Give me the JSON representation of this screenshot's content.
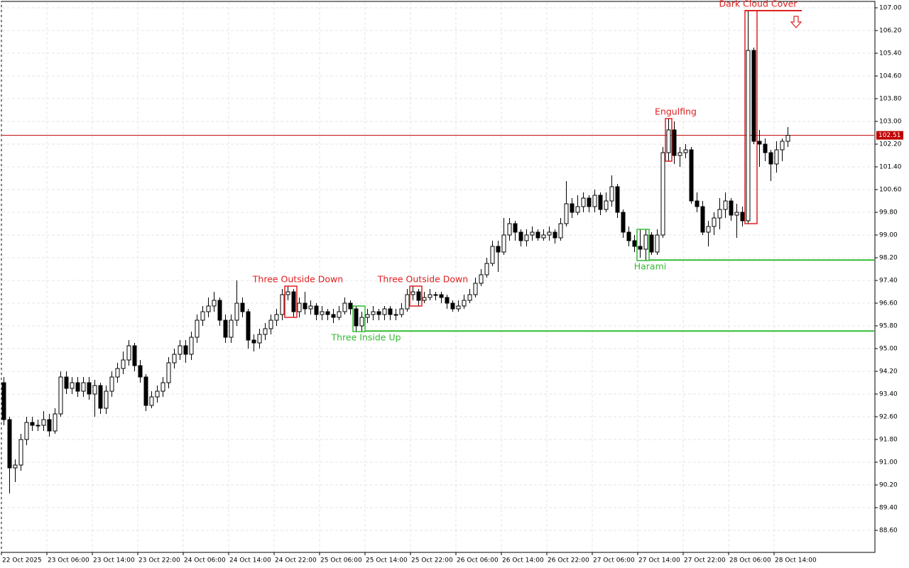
{
  "chart_data": {
    "type": "candlestick",
    "candles": [
      [
        93.8,
        94.0,
        92.3,
        92.5
      ],
      [
        92.5,
        92.6,
        89.9,
        90.8
      ],
      [
        90.8,
        91.1,
        90.3,
        90.9
      ],
      [
        90.9,
        92.0,
        90.7,
        91.8
      ],
      [
        91.8,
        92.6,
        91.6,
        92.4
      ],
      [
        92.4,
        92.6,
        92.1,
        92.3
      ],
      [
        92.3,
        92.5,
        92.1,
        92.3
      ],
      [
        92.3,
        92.8,
        92.1,
        92.5
      ],
      [
        92.5,
        92.7,
        91.9,
        92.1
      ],
      [
        92.1,
        92.9,
        92.0,
        92.7
      ],
      [
        92.7,
        94.2,
        92.6,
        94.0
      ],
      [
        94.0,
        94.2,
        93.4,
        93.6
      ],
      [
        93.6,
        94.0,
        93.4,
        93.8
      ],
      [
        93.8,
        94.0,
        93.3,
        93.5
      ],
      [
        93.5,
        94.0,
        93.3,
        93.8
      ],
      [
        93.8,
        94.0,
        93.2,
        93.4
      ],
      [
        93.4,
        93.9,
        92.6,
        93.7
      ],
      [
        93.7,
        93.8,
        92.7,
        92.9
      ],
      [
        92.9,
        93.7,
        92.7,
        93.5
      ],
      [
        93.5,
        94.2,
        93.3,
        94.0
      ],
      [
        94.0,
        94.5,
        93.8,
        94.3
      ],
      [
        94.3,
        94.9,
        94.1,
        94.6
      ],
      [
        94.6,
        95.3,
        94.4,
        95.1
      ],
      [
        95.1,
        95.2,
        94.2,
        94.4
      ],
      [
        94.4,
        94.6,
        93.8,
        94.0
      ],
      [
        94.0,
        94.1,
        92.8,
        93.0
      ],
      [
        93.0,
        93.5,
        92.9,
        93.3
      ],
      [
        93.3,
        93.7,
        93.1,
        93.5
      ],
      [
        93.5,
        94.0,
        93.3,
        93.8
      ],
      [
        93.8,
        94.7,
        93.6,
        94.5
      ],
      [
        94.5,
        95.0,
        94.3,
        94.8
      ],
      [
        94.8,
        95.3,
        94.6,
        95.1
      ],
      [
        95.1,
        95.3,
        94.5,
        94.8
      ],
      [
        94.8,
        95.6,
        94.6,
        95.4
      ],
      [
        95.4,
        96.2,
        95.2,
        96.0
      ],
      [
        96.0,
        96.5,
        95.8,
        96.3
      ],
      [
        96.3,
        96.8,
        96.1,
        96.5
      ],
      [
        96.5,
        97.0,
        96.3,
        96.7
      ],
      [
        96.7,
        96.8,
        95.8,
        96.0
      ],
      [
        96.0,
        96.2,
        95.2,
        95.4
      ],
      [
        95.4,
        96.2,
        95.2,
        96.0
      ],
      [
        96.0,
        97.4,
        95.8,
        96.6
      ],
      [
        96.6,
        96.8,
        96.1,
        96.3
      ],
      [
        96.3,
        96.4,
        95.0,
        95.3
      ],
      [
        95.3,
        95.5,
        94.9,
        95.2
      ],
      [
        95.2,
        95.7,
        95.0,
        95.5
      ],
      [
        95.5,
        95.9,
        95.3,
        95.7
      ],
      [
        95.7,
        96.2,
        95.5,
        96.0
      ],
      [
        96.0,
        96.4,
        95.8,
        96.2
      ],
      [
        96.2,
        97.1,
        96.0,
        96.9
      ],
      [
        96.9,
        97.2,
        96.7,
        97.0
      ],
      [
        97.0,
        97.1,
        96.1,
        96.3
      ],
      [
        96.3,
        96.8,
        96.1,
        96.6
      ],
      [
        96.6,
        97.0,
        96.2,
        96.4
      ],
      [
        96.4,
        96.7,
        96.2,
        96.5
      ],
      [
        96.5,
        96.6,
        96.0,
        96.2
      ],
      [
        96.2,
        96.5,
        96.0,
        96.3
      ],
      [
        96.3,
        96.4,
        96.0,
        96.2
      ],
      [
        96.2,
        96.4,
        95.9,
        96.1
      ],
      [
        96.1,
        96.5,
        96.0,
        96.3
      ],
      [
        96.3,
        96.8,
        96.2,
        96.6
      ],
      [
        96.6,
        96.7,
        96.2,
        96.4
      ],
      [
        96.4,
        96.5,
        95.6,
        95.8
      ],
      [
        95.8,
        96.3,
        95.6,
        96.1
      ],
      [
        96.1,
        96.4,
        95.9,
        96.2
      ],
      [
        96.2,
        96.5,
        96.0,
        96.3
      ],
      [
        96.3,
        96.4,
        96.0,
        96.2
      ],
      [
        96.2,
        96.5,
        96.0,
        96.4
      ],
      [
        96.4,
        96.5,
        96.0,
        96.2
      ],
      [
        96.2,
        96.4,
        96.0,
        96.2
      ],
      [
        96.2,
        96.6,
        96.1,
        96.4
      ],
      [
        96.4,
        97.1,
        96.3,
        96.9
      ],
      [
        96.9,
        97.2,
        96.7,
        97.0
      ],
      [
        97.0,
        97.1,
        96.5,
        96.7
      ],
      [
        96.7,
        97.0,
        96.6,
        96.8
      ],
      [
        96.8,
        97.1,
        96.7,
        96.9
      ],
      [
        96.9,
        97.0,
        96.7,
        96.9
      ],
      [
        96.9,
        97.0,
        96.6,
        96.8
      ],
      [
        96.8,
        96.9,
        96.4,
        96.6
      ],
      [
        96.6,
        96.7,
        96.3,
        96.4
      ],
      [
        96.4,
        96.7,
        96.3,
        96.5
      ],
      [
        96.5,
        96.9,
        96.4,
        96.7
      ],
      [
        96.7,
        97.1,
        96.6,
        96.9
      ],
      [
        96.9,
        97.5,
        96.8,
        97.3
      ],
      [
        97.3,
        97.8,
        97.2,
        97.6
      ],
      [
        97.6,
        98.2,
        97.5,
        98.0
      ],
      [
        98.0,
        98.8,
        97.9,
        98.6
      ],
      [
        98.6,
        98.8,
        97.7,
        98.4
      ],
      [
        98.4,
        99.6,
        98.3,
        99.0
      ],
      [
        99.0,
        99.6,
        98.8,
        99.4
      ],
      [
        99.4,
        99.5,
        98.8,
        99.1
      ],
      [
        99.1,
        99.2,
        98.6,
        98.8
      ],
      [
        98.8,
        99.2,
        98.6,
        99.0
      ],
      [
        99.0,
        99.3,
        98.8,
        99.1
      ],
      [
        99.1,
        99.2,
        98.8,
        98.9
      ],
      [
        98.9,
        99.2,
        98.8,
        99.0
      ],
      [
        99.0,
        99.3,
        98.8,
        99.1
      ],
      [
        99.1,
        99.2,
        98.7,
        98.9
      ],
      [
        98.9,
        99.6,
        98.8,
        99.4
      ],
      [
        99.4,
        100.9,
        99.3,
        100.1
      ],
      [
        100.1,
        100.3,
        99.6,
        99.8
      ],
      [
        99.8,
        100.4,
        99.7,
        100.0
      ],
      [
        100.0,
        100.5,
        99.8,
        100.3
      ],
      [
        100.3,
        100.4,
        99.8,
        100.0
      ],
      [
        100.0,
        100.6,
        99.8,
        100.4
      ],
      [
        100.4,
        100.5,
        99.7,
        99.9
      ],
      [
        99.9,
        100.5,
        99.8,
        100.2
      ],
      [
        100.2,
        101.1,
        100.0,
        100.7
      ],
      [
        100.7,
        100.8,
        99.6,
        99.8
      ],
      [
        99.8,
        99.9,
        98.9,
        99.1
      ],
      [
        99.1,
        99.3,
        98.6,
        98.8
      ],
      [
        98.8,
        99.0,
        98.4,
        98.6
      ],
      [
        98.6,
        99.2,
        98.2,
        98.5
      ],
      [
        98.5,
        99.2,
        98.1,
        99.0
      ],
      [
        99.0,
        99.1,
        98.3,
        98.4
      ],
      [
        98.4,
        99.2,
        98.3,
        99.0
      ],
      [
        99.0,
        102.1,
        98.9,
        101.9
      ],
      [
        101.9,
        103.1,
        101.6,
        102.7
      ],
      [
        102.7,
        103.0,
        101.5,
        101.8
      ],
      [
        101.8,
        102.1,
        101.4,
        101.9
      ],
      [
        101.9,
        102.2,
        101.7,
        102.0
      ],
      [
        102.0,
        102.1,
        100.1,
        100.2
      ],
      [
        100.2,
        100.5,
        99.8,
        100.0
      ],
      [
        100.0,
        100.2,
        99.0,
        99.1
      ],
      [
        99.1,
        99.5,
        98.6,
        99.3
      ],
      [
        99.3,
        99.8,
        99.0,
        99.6
      ],
      [
        99.6,
        100.3,
        99.2,
        99.9
      ],
      [
        99.9,
        100.5,
        99.6,
        100.2
      ],
      [
        100.2,
        100.3,
        99.5,
        99.7
      ],
      [
        99.7,
        100.1,
        98.9,
        99.8
      ],
      [
        99.8,
        100.0,
        99.3,
        99.5
      ],
      [
        99.5,
        106.9,
        99.4,
        105.5
      ],
      [
        105.5,
        105.6,
        102.2,
        102.3
      ],
      [
        102.3,
        102.7,
        101.4,
        102.2
      ],
      [
        102.2,
        102.4,
        101.6,
        101.9
      ],
      [
        101.9,
        102.0,
        100.9,
        101.5
      ],
      [
        101.5,
        102.3,
        101.2,
        102.0
      ],
      [
        102.0,
        102.4,
        101.6,
        102.3
      ],
      [
        102.3,
        102.8,
        102.1,
        102.51
      ]
    ],
    "xlim": [
      -0.625,
      153.375
    ],
    "xticks": [
      {
        "value": 0,
        "label": "22 Oct 2025"
      },
      {
        "value": 8,
        "label": "23 Oct 06:00"
      },
      {
        "value": 16,
        "label": "23 Oct 14:00"
      },
      {
        "value": 24,
        "label": "23 Oct 22:00"
      },
      {
        "value": 32,
        "label": "24 Oct 06:00"
      },
      {
        "value": 40,
        "label": "24 Oct 14:00"
      },
      {
        "value": 48,
        "label": "24 Oct 22:00"
      },
      {
        "value": 56,
        "label": "25 Oct 06:00"
      },
      {
        "value": 64,
        "label": "25 Oct 14:00"
      },
      {
        "value": 72,
        "label": "25 Oct 22:00"
      },
      {
        "value": 80,
        "label": "26 Oct 06:00"
      },
      {
        "value": 88,
        "label": "26 Oct 14:00"
      },
      {
        "value": 96,
        "label": "26 Oct 22:00"
      },
      {
        "value": 104,
        "label": "27 Oct 06:00"
      },
      {
        "value": 112,
        "label": "27 Oct 14:00"
      },
      {
        "value": 120,
        "label": "27 Oct 22:00"
      },
      {
        "value": 128,
        "label": "28 Oct 06:00"
      },
      {
        "value": 136,
        "label": "28 Oct 14:00"
      }
    ],
    "ylim": [
      87.825,
      107.225
    ],
    "yticks": [
      {
        "value": 107,
        "label": "107.00"
      },
      {
        "value": 106.2,
        "label": "106.20"
      },
      {
        "value": 105.4,
        "label": "105.40"
      },
      {
        "value": 104.6,
        "label": "104.60"
      },
      {
        "value": 103.8,
        "label": "103.80"
      },
      {
        "value": 103,
        "label": "103.00"
      },
      {
        "value": 102.2,
        "label": "102.20"
      },
      {
        "value": 101.4,
        "label": "101.40"
      },
      {
        "value": 100.6,
        "label": "100.60"
      },
      {
        "value": 99.8,
        "label": "99.80"
      },
      {
        "value": 99,
        "label": "99.00"
      },
      {
        "value": 98.2,
        "label": "98.20"
      },
      {
        "value": 97.4,
        "label": "97.40"
      },
      {
        "value": 96.6,
        "label": "96.60"
      },
      {
        "value": 95.8,
        "label": "95.80"
      },
      {
        "value": 95,
        "label": "95.00"
      },
      {
        "value": 94.2,
        "label": "94.20"
      },
      {
        "value": 93.4,
        "label": "93.40"
      },
      {
        "value": 92.6,
        "label": "92.60"
      },
      {
        "value": 91.8,
        "label": "91.80"
      },
      {
        "value": 91,
        "label": "91.00"
      },
      {
        "value": 90.2,
        "label": "90.20"
      },
      {
        "value": 89.4,
        "label": "89.40"
      },
      {
        "value": 88.6,
        "label": "88.60"
      }
    ],
    "grid": true,
    "current_price": {
      "value": 102.51,
      "label": "102.51",
      "color": "#c00000"
    },
    "patterns": [
      {
        "label": "Three Outside Down",
        "color": "#e02020",
        "candles": [
          50,
          51
        ],
        "position": "above"
      },
      {
        "label": "Three Inside Up",
        "color": "#33bb33",
        "candles": [
          62,
          63
        ],
        "position": "below",
        "level": 95.62
      },
      {
        "label": "Three Outside Down",
        "color": "#e02020",
        "candles": [
          72,
          73
        ],
        "position": "above"
      },
      {
        "label": "Harami",
        "color": "#33bb33",
        "candles": [
          112,
          113
        ],
        "position": "below",
        "level": 98.12
      },
      {
        "label": "Engulfing",
        "color": "#e02020",
        "candles": [
          117,
          117
        ],
        "position": "above"
      },
      {
        "label": "Dark Cloud Cover",
        "color": "#e02020",
        "candles": [
          131,
          132
        ],
        "position": "above"
      }
    ]
  }
}
